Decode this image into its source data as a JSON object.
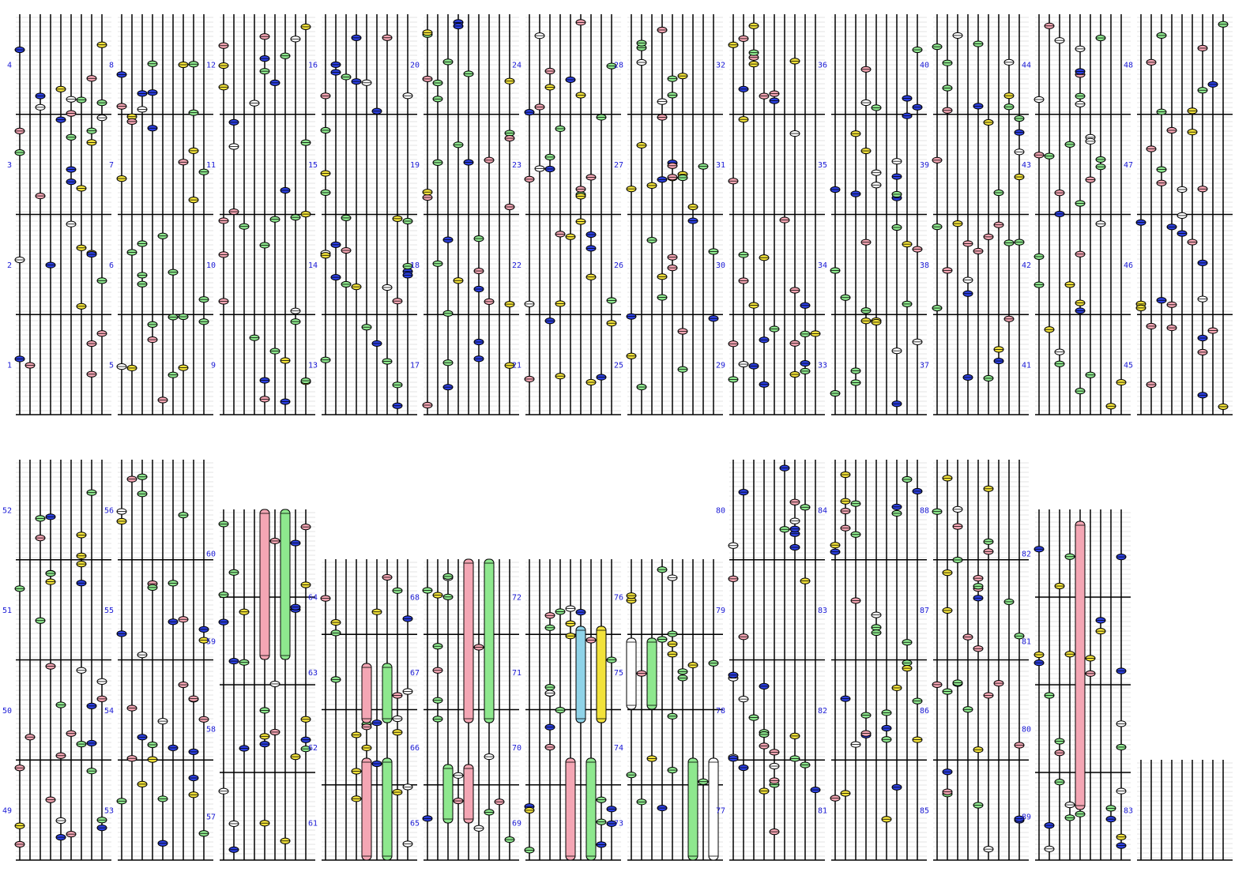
{
  "colors": {
    "pink": "#f4a6b4",
    "green": "#8ee88e",
    "blue": "#2b3fe0",
    "yellow": "#f2e23a",
    "white": "#ffffff",
    "cyan": "#8fd3e8",
    "label": "#1a1ad6",
    "line": "#000000",
    "grid": "#c8c8c8"
  },
  "row1_labels": [
    [
      "4",
      "3",
      "2",
      "1"
    ],
    [
      "8",
      "7",
      "6",
      "5"
    ],
    [
      "12",
      "11",
      "10",
      "9"
    ],
    [
      "16",
      "15",
      "14",
      "13"
    ],
    [
      "20",
      "19",
      "18",
      "17"
    ],
    [
      "24",
      "23",
      "22",
      "21"
    ],
    [
      "28",
      "27",
      "26",
      "25"
    ],
    [
      "32",
      "31",
      "30",
      "29"
    ],
    [
      "36",
      "35",
      "34",
      "33"
    ],
    [
      "40",
      "39",
      "38",
      "37"
    ],
    [
      "44",
      "43",
      "42",
      "41"
    ],
    [
      "48",
      "47",
      "46",
      "45"
    ]
  ],
  "row2_labels": [
    [
      "52",
      "51",
      "50",
      "49"
    ],
    [
      "56",
      "55",
      "54",
      "53"
    ],
    [
      "60",
      "59",
      "58",
      "57"
    ],
    [
      "64",
      "63",
      "62",
      "61"
    ],
    [
      "68",
      "67",
      "66",
      "65"
    ],
    [
      "72",
      "71",
      "70",
      "69"
    ],
    [
      "76",
      "75",
      "74",
      "73"
    ],
    [
      "80",
      "79",
      "78",
      "77"
    ],
    [
      "84",
      "83",
      "82",
      "81"
    ],
    [
      "88",
      "87",
      "86",
      "85"
    ],
    [
      "82",
      "81",
      "80",
      "89"
    ],
    [
      "83"
    ]
  ]
}
